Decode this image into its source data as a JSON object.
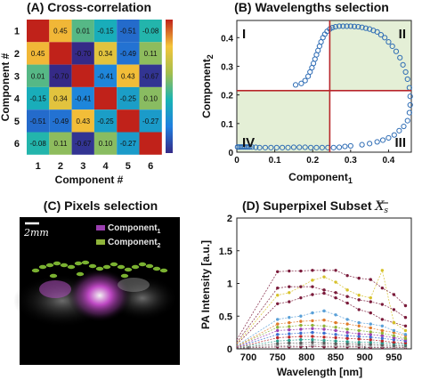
{
  "panels": {
    "a_title": "(A) Cross-correlation",
    "b_title": "(B) Wavelengths selection",
    "c_title": "(C) Pixels selection",
    "c_scale": "2mm",
    "c_legend": [
      {
        "name": "Component",
        "sub": "1",
        "color": "#9b3fb0"
      },
      {
        "name": "Component",
        "sub": "2",
        "color": "#8fb43a"
      }
    ],
    "d_title": "(D) Superpixel Subset ",
    "d_title_symbol": "X",
    "d_title_symbol_sub": "s"
  },
  "chart_data": [
    {
      "type": "heatmap",
      "title": "(A) Cross-correlation",
      "xlabel": "Component #",
      "ylabel": "Component #",
      "x_categories": [
        "1",
        "2",
        "3",
        "4",
        "5",
        "6"
      ],
      "y_categories": [
        "1",
        "2",
        "3",
        "4",
        "5",
        "6"
      ],
      "values": [
        [
          1,
          0.45,
          0.01,
          -0.15,
          -0.51,
          -0.08
        ],
        [
          0.45,
          1,
          -0.7,
          0.34,
          -0.49,
          0.11
        ],
        [
          0.01,
          -0.7,
          1,
          -0.41,
          0.43,
          -0.67
        ],
        [
          -0.15,
          0.34,
          -0.41,
          1,
          -0.25,
          0.1
        ],
        [
          -0.51,
          -0.49,
          0.43,
          -0.25,
          1,
          -0.27
        ],
        [
          -0.08,
          0.11,
          -0.67,
          0.1,
          -0.27,
          1
        ]
      ],
      "colorbar": true
    },
    {
      "type": "scatter",
      "title": "(B) Wavelengths selection",
      "xlabel": "Component",
      "xlabel_sub": "1",
      "ylabel": "Component",
      "ylabel_sub": "2",
      "xlim": [
        0,
        0.46
      ],
      "ylim": [
        0,
        0.46
      ],
      "xticks": [
        "0",
        "0.1",
        "0.2",
        "0.3",
        "0.4"
      ],
      "yticks": [
        "0",
        "0.1",
        "0.2",
        "0.3",
        "0.4"
      ],
      "quadrant_labels": [
        "I",
        "II",
        "III",
        "IV"
      ],
      "divider_x": 0.245,
      "divider_y": 0.215,
      "marker_color": "#2f6db5",
      "divider_color": "#b8262a",
      "points": [
        [
          0.002,
          0.018
        ],
        [
          0.006,
          0.018
        ],
        [
          0.01,
          0.018
        ],
        [
          0.014,
          0.018
        ],
        [
          0.018,
          0.018
        ],
        [
          0.022,
          0.018
        ],
        [
          0.026,
          0.018
        ],
        [
          0.03,
          0.018
        ],
        [
          0.034,
          0.018
        ],
        [
          0.04,
          0.018
        ],
        [
          0.05,
          0.017
        ],
        [
          0.06,
          0.016
        ],
        [
          0.075,
          0.016
        ],
        [
          0.09,
          0.016
        ],
        [
          0.105,
          0.016
        ],
        [
          0.12,
          0.016
        ],
        [
          0.135,
          0.016
        ],
        [
          0.15,
          0.017
        ],
        [
          0.165,
          0.017
        ],
        [
          0.18,
          0.017
        ],
        [
          0.195,
          0.016
        ],
        [
          0.21,
          0.016
        ],
        [
          0.225,
          0.016
        ],
        [
          0.24,
          0.016
        ],
        [
          0.255,
          0.016
        ],
        [
          0.27,
          0.017
        ],
        [
          0.285,
          0.02
        ],
        [
          0.3,
          0.022
        ],
        [
          0.155,
          0.235
        ],
        [
          0.17,
          0.24
        ],
        [
          0.18,
          0.25
        ],
        [
          0.188,
          0.265
        ],
        [
          0.193,
          0.28
        ],
        [
          0.198,
          0.295
        ],
        [
          0.202,
          0.31
        ],
        [
          0.206,
          0.325
        ],
        [
          0.21,
          0.34
        ],
        [
          0.214,
          0.355
        ],
        [
          0.218,
          0.37
        ],
        [
          0.222,
          0.385
        ],
        [
          0.227,
          0.4
        ],
        [
          0.232,
          0.412
        ],
        [
          0.238,
          0.422
        ],
        [
          0.245,
          0.43
        ],
        [
          0.252,
          0.435
        ],
        [
          0.26,
          0.438
        ],
        [
          0.27,
          0.44
        ],
        [
          0.28,
          0.44
        ],
        [
          0.29,
          0.44
        ],
        [
          0.3,
          0.44
        ],
        [
          0.31,
          0.439
        ],
        [
          0.32,
          0.438
        ],
        [
          0.33,
          0.436
        ],
        [
          0.34,
          0.433
        ],
        [
          0.35,
          0.43
        ],
        [
          0.36,
          0.425
        ],
        [
          0.37,
          0.42
        ],
        [
          0.38,
          0.41
        ],
        [
          0.39,
          0.4
        ],
        [
          0.4,
          0.385
        ],
        [
          0.41,
          0.37
        ],
        [
          0.42,
          0.352
        ],
        [
          0.43,
          0.33
        ],
        [
          0.438,
          0.305
        ],
        [
          0.445,
          0.28
        ],
        [
          0.45,
          0.255
        ],
        [
          0.455,
          0.225
        ],
        [
          0.457,
          0.195
        ],
        [
          0.457,
          0.165
        ],
        [
          0.455,
          0.138
        ],
        [
          0.45,
          0.11
        ],
        [
          0.44,
          0.09
        ],
        [
          0.428,
          0.075
        ],
        [
          0.415,
          0.06
        ],
        [
          0.4,
          0.05
        ],
        [
          0.385,
          0.042
        ],
        [
          0.37,
          0.036
        ],
        [
          0.35,
          0.03
        ],
        [
          0.33,
          0.026
        ]
      ]
    },
    {
      "type": "line",
      "title": "(D) Superpixel Subset",
      "xlabel": "Wavelength [nm]",
      "ylabel": "PA Intensity [a.u.]",
      "xlim": [
        680,
        980
      ],
      "ylim": [
        0,
        2
      ],
      "xticks": [
        700,
        750,
        800,
        850,
        900,
        950
      ],
      "yticks": [
        0,
        0.5,
        1,
        1.5,
        2
      ],
      "x": [
        680,
        750,
        770,
        790,
        810,
        830,
        850,
        870,
        890,
        910,
        930,
        950,
        970
      ],
      "series": [
        {
          "color": "#7a1a3a",
          "values": [
            0.14,
            1.18,
            1.19,
            1.19,
            1.2,
            1.2,
            1.2,
            1.12,
            1.08,
            1.06,
            0.93,
            0.83,
            0.66
          ]
        },
        {
          "color": "#7a1a3a",
          "values": [
            0.1,
            0.93,
            0.95,
            0.95,
            0.95,
            0.9,
            0.86,
            0.8,
            0.75,
            0.72,
            0.68,
            0.6,
            0.48
          ]
        },
        {
          "color": "#d6c12a",
          "values": [
            0.08,
            0.82,
            0.86,
            0.95,
            1.05,
            1.1,
            1.02,
            0.9,
            0.82,
            0.78,
            1.2,
            0.4,
            0.28
          ]
        },
        {
          "color": "#7a1a3a",
          "values": [
            0.07,
            0.69,
            0.72,
            0.78,
            0.83,
            0.85,
            0.78,
            0.7,
            0.6,
            0.55,
            0.45,
            0.4,
            0.35
          ]
        },
        {
          "color": "#5aa0d8",
          "values": [
            0.05,
            0.45,
            0.48,
            0.5,
            0.55,
            0.58,
            0.52,
            0.45,
            0.4,
            0.38,
            0.35,
            0.28,
            0.22
          ]
        },
        {
          "color": "#e07b2a",
          "values": [
            0.04,
            0.38,
            0.4,
            0.42,
            0.43,
            0.44,
            0.4,
            0.38,
            0.35,
            0.32,
            0.28,
            0.25,
            0.2
          ]
        },
        {
          "color": "#8fb43a",
          "values": [
            0.04,
            0.33,
            0.34,
            0.36,
            0.36,
            0.35,
            0.33,
            0.3,
            0.28,
            0.26,
            0.24,
            0.2,
            0.16
          ]
        },
        {
          "color": "#9b3fb0",
          "values": [
            0.03,
            0.28,
            0.29,
            0.3,
            0.31,
            0.3,
            0.28,
            0.25,
            0.23,
            0.22,
            0.2,
            0.17,
            0.14
          ]
        },
        {
          "color": "#3a6fd0",
          "values": [
            0.03,
            0.22,
            0.23,
            0.24,
            0.25,
            0.24,
            0.22,
            0.2,
            0.19,
            0.18,
            0.16,
            0.14,
            0.12
          ]
        },
        {
          "color": "#b8262a",
          "values": [
            0.02,
            0.17,
            0.18,
            0.19,
            0.19,
            0.18,
            0.17,
            0.16,
            0.15,
            0.14,
            0.12,
            0.1,
            0.09
          ]
        },
        {
          "color": "#2a9a8a",
          "values": [
            0.02,
            0.12,
            0.13,
            0.14,
            0.14,
            0.13,
            0.12,
            0.11,
            0.1,
            0.1,
            0.09,
            0.08,
            0.07
          ]
        },
        {
          "color": "#5a5a5a",
          "values": [
            0.01,
            0.08,
            0.09,
            0.09,
            0.1,
            0.09,
            0.08,
            0.08,
            0.07,
            0.07,
            0.06,
            0.05,
            0.05
          ]
        },
        {
          "color": "#a0a0a0",
          "values": [
            0.01,
            0.05,
            0.05,
            0.06,
            0.06,
            0.06,
            0.05,
            0.05,
            0.05,
            0.04,
            0.04,
            0.03,
            0.03
          ]
        },
        {
          "color": "#7a1a3a",
          "values": [
            0.01,
            0.03,
            0.03,
            0.03,
            0.04,
            0.03,
            0.03,
            0.03,
            0.03,
            0.02,
            0.02,
            0.02,
            0.02
          ]
        }
      ]
    }
  ]
}
